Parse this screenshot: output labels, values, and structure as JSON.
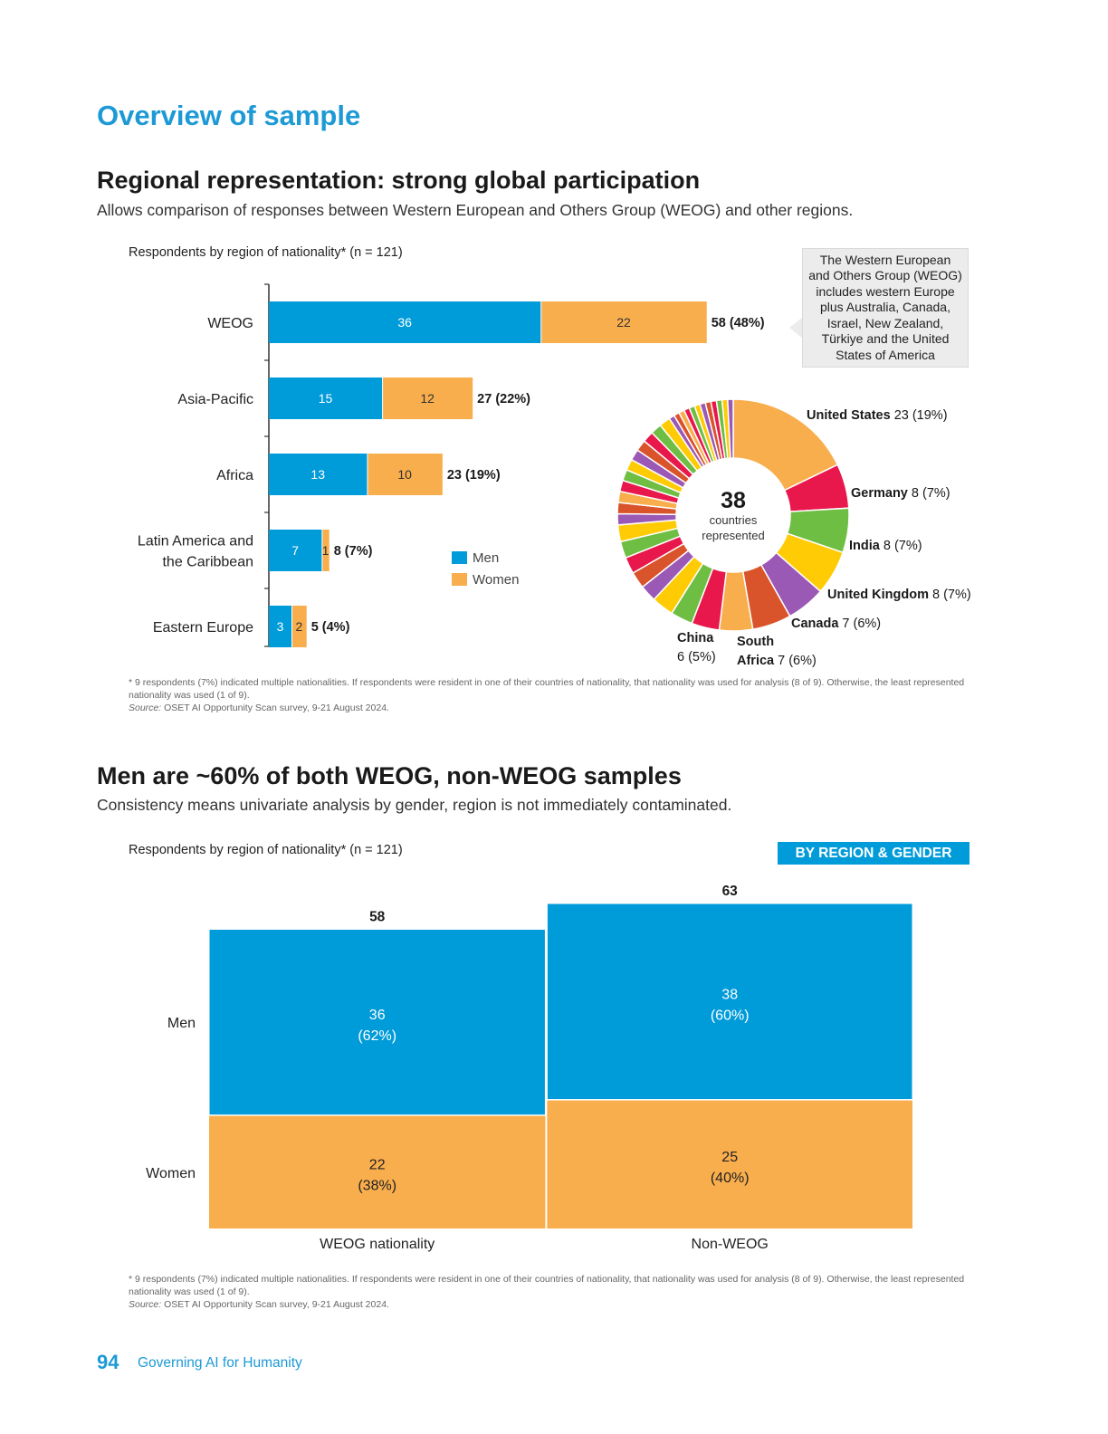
{
  "page": {
    "title": "Overview of sample",
    "footer_page": "94",
    "footer_text": "Governing AI for Humanity"
  },
  "section1": {
    "heading": "Regional representation: strong global participation",
    "subheading": "Allows comparison of responses between Western European and Others Group (WEOG) and other regions.",
    "chart_title": "Respondents by region of nationality* (n = 121)",
    "callout": "The Western European and Others Group (WEOG) includes western Europe plus Australia, Canada, Israel, New Zealand, Türkiye and the United States of America",
    "note": "* 9 respondents (7%) indicated multiple nationalities. If respondents were resident in one of their countries of nationality, that nationality was used for analysis (8 of 9). Otherwise, the least represented nationality was used (1 of 9).",
    "source_label": "Source:",
    "source_text": "OSET AI Opportunity Scan survey, 9-21 August 2024."
  },
  "section2": {
    "heading": "Men are ~60% of both WEOG, non-WEOG samples",
    "subheading": "Consistency means univariate analysis by gender, region is not immediately contaminated.",
    "chart_title": "Respondents by region of nationality* (n = 121)",
    "badge": "BY REGION & GENDER",
    "note": "* 9 respondents (7%) indicated multiple nationalities. If respondents were resident in one of their countries of nationality, that nationality was used for analysis (8 of 9). Otherwise, the least represented nationality was used (1 of 9).",
    "source_label": "Source:",
    "source_text": "OSET AI Opportunity Scan survey, 9-21 August 2024."
  },
  "colors": {
    "men": "#009bd9",
    "women": "#f9ae4d",
    "heading_blue": "#1d9ad6"
  },
  "chart_data": [
    {
      "type": "bar",
      "orientation": "horizontal",
      "stacked": true,
      "categories": [
        "WEOG",
        "Asia-Pacific",
        "Africa",
        "Latin America and the Caribbean",
        "Eastern Europe"
      ],
      "category_lines": [
        [
          "WEOG"
        ],
        [
          "Asia-Pacific"
        ],
        [
          "Africa"
        ],
        [
          "Latin America and",
          "the Caribbean"
        ],
        [
          "Eastern Europe"
        ]
      ],
      "series": [
        {
          "name": "Men",
          "values": [
            36,
            15,
            13,
            7,
            3
          ]
        },
        {
          "name": "Women",
          "values": [
            22,
            12,
            10,
            1,
            2
          ]
        }
      ],
      "totals": [
        "58 (48%)",
        "27 (22%)",
        "23 (19%)",
        "8 (7%)",
        "5 (4%)"
      ],
      "legend_position": "right"
    },
    {
      "type": "pie",
      "donut": true,
      "center_value": "38",
      "center_label": [
        "countries",
        "represented"
      ],
      "slices": [
        {
          "name": "United States",
          "value": 23,
          "pct": "23 (19%)",
          "color": "#f9ae4d"
        },
        {
          "name": "Germany",
          "value": 8,
          "pct": "8 (7%)",
          "color": "#e8174c"
        },
        {
          "name": "India",
          "value": 8,
          "pct": "8 (7%)",
          "color": "#6fbe44"
        },
        {
          "name": "United Kingdom",
          "value": 8,
          "pct": "8 (7%)",
          "color": "#ffcb05"
        },
        {
          "name": "Canada",
          "value": 7,
          "pct": "7 (6%)",
          "color": "#9b59b6"
        },
        {
          "name": "South Africa",
          "value": 7,
          "pct": "7 (6%)",
          "color": "#d9532b"
        },
        {
          "name": "China",
          "value": 6,
          "pct": "6 (5%)",
          "color": "#f9ae4d"
        }
      ],
      "other_slices": [
        5,
        4,
        4,
        3,
        3,
        3,
        3,
        3,
        2,
        2,
        2,
        2,
        2,
        2,
        2,
        2,
        2,
        2,
        2,
        1,
        1,
        1,
        1,
        1,
        1,
        1,
        1,
        1,
        1,
        1,
        1
      ],
      "other_colors": [
        "#e8174c",
        "#6fbe44",
        "#ffcb05",
        "#9b59b6",
        "#d9532b",
        "#e8174c",
        "#6fbe44",
        "#ffcb05",
        "#9b59b6",
        "#d9532b",
        "#f9ae4d"
      ]
    },
    {
      "type": "bar",
      "subtype": "mekko",
      "columns": [
        "WEOG nationality",
        "Non-WEOG"
      ],
      "rows": [
        "Men",
        "Women"
      ],
      "column_totals": [
        58,
        63
      ],
      "series": [
        {
          "name": "Men",
          "values": [
            36,
            38
          ],
          "labels": [
            "(62%)",
            "(60%)"
          ]
        },
        {
          "name": "Women",
          "values": [
            22,
            25
          ],
          "labels": [
            "(38%)",
            "(40%)"
          ]
        }
      ]
    }
  ]
}
